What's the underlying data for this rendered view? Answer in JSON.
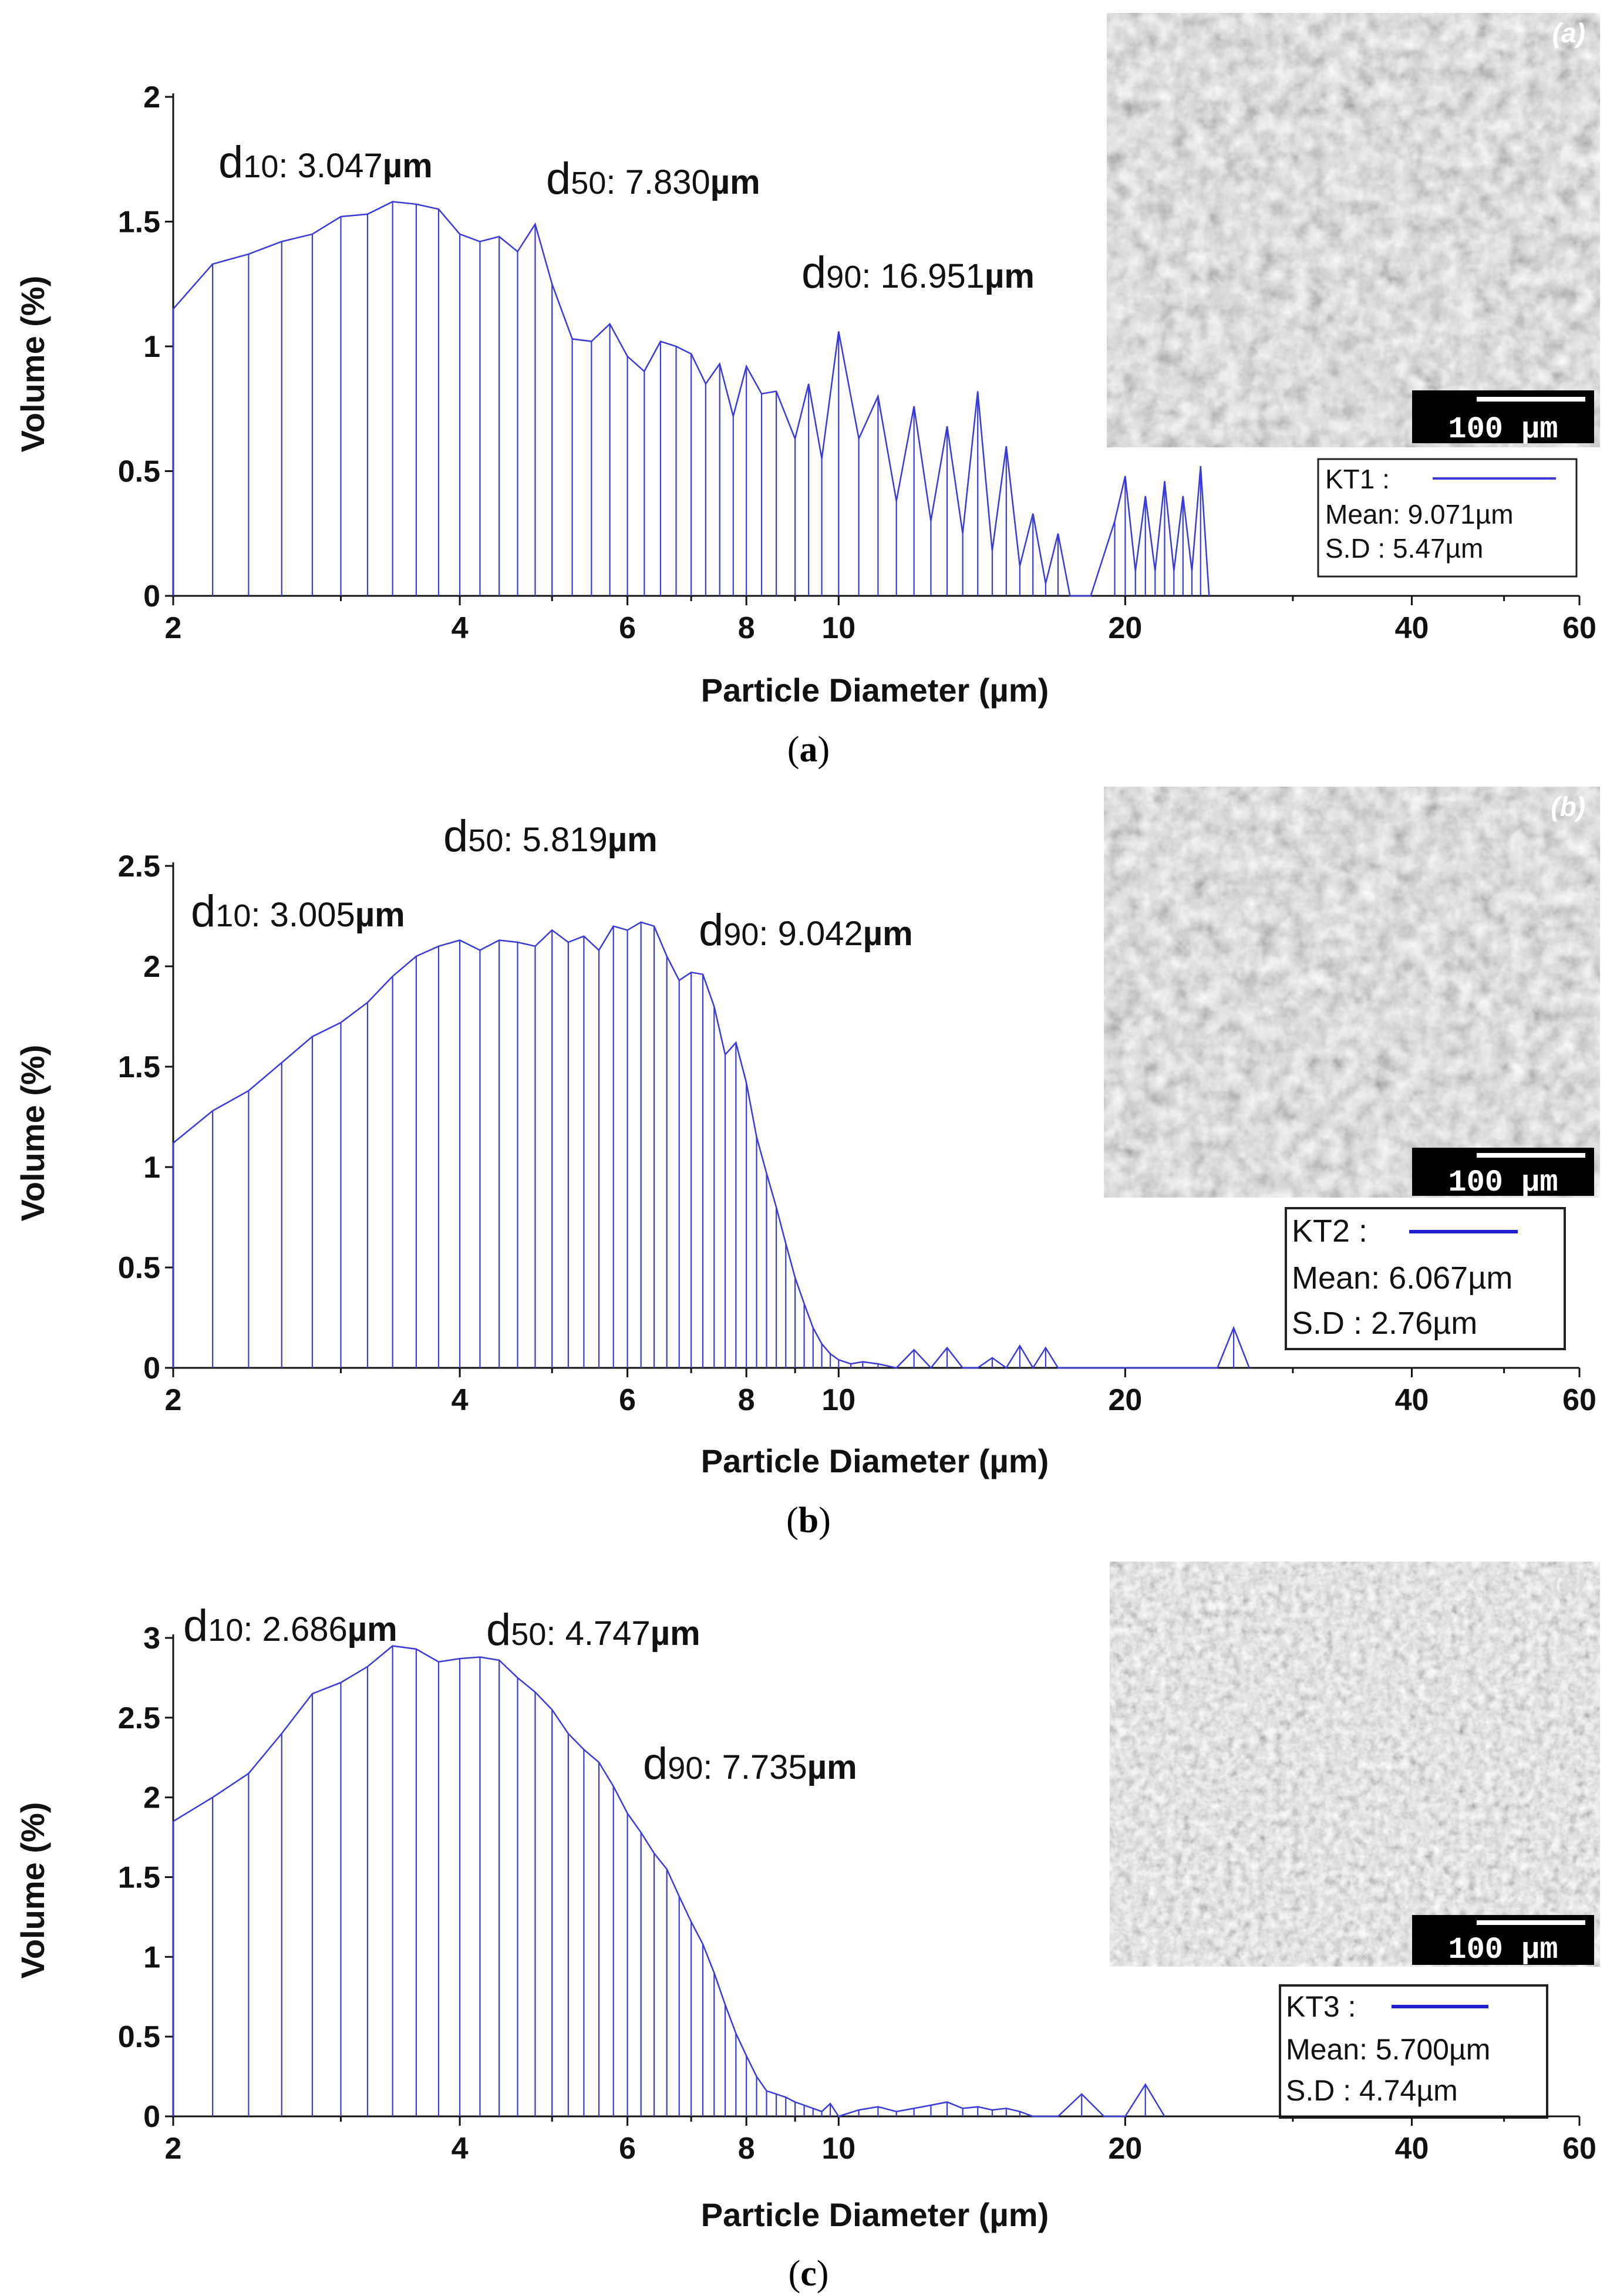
{
  "chart_data": [
    {
      "type": "bar",
      "panel": "a",
      "sem_label": "(a)",
      "scale_bar_label": "100 µm",
      "xlabel": "Particle Diameter (µm)",
      "ylabel": "Volume (%)",
      "xscale": "log",
      "xlim": [
        2,
        60
      ],
      "ylim": [
        0,
        2
      ],
      "xticks": [
        2,
        4,
        6,
        8,
        10,
        20,
        40,
        60
      ],
      "yticks": [
        {
          "v": 0,
          "label": "0"
        },
        {
          "v": 0.5,
          "label": "0.5"
        },
        {
          "v": 1,
          "label": "1"
        },
        {
          "v": 1.5,
          "label": "1.5"
        },
        {
          "v": 2,
          "label": "2"
        }
      ],
      "d10": {
        "name": "d",
        "sub": "10",
        "text": ": 3.047",
        "unit": "µm"
      },
      "d50": {
        "name": "d",
        "sub": "50",
        "text": ": 7.830",
        "unit": "µm"
      },
      "d90": {
        "name": "d",
        "sub": "90",
        "text": ": 16.951",
        "unit": "µm"
      },
      "legend": {
        "name": "KT1",
        "mean": "Mean: 9.071µm",
        "sd": "S.D   : 5.47µm"
      },
      "series": [
        {
          "name": "KT1",
          "color": "#3a3adc",
          "x": [
            2.0,
            2.2,
            2.4,
            2.6,
            2.8,
            3.0,
            3.2,
            3.4,
            3.6,
            3.8,
            4.0,
            4.2,
            4.4,
            4.6,
            4.8,
            5.0,
            5.25,
            5.5,
            5.75,
            6.0,
            6.25,
            6.5,
            6.75,
            7.0,
            7.25,
            7.5,
            7.75,
            8.0,
            8.3,
            8.6,
            9.0,
            9.3,
            9.6,
            10.0,
            10.5,
            11.0,
            11.5,
            12.0,
            12.5,
            13.0,
            13.5,
            14.0,
            14.5,
            15.0,
            15.5,
            16.0,
            16.5,
            17.0,
            17.5,
            18.0,
            18.4,
            19.5,
            20.0,
            20.5,
            21.0,
            21.5,
            22.0,
            22.5,
            23.0,
            23.5,
            24.0,
            24.5
          ],
          "y": [
            1.15,
            1.33,
            1.37,
            1.42,
            1.45,
            1.52,
            1.53,
            1.58,
            1.57,
            1.55,
            1.45,
            1.42,
            1.44,
            1.38,
            1.49,
            1.25,
            1.03,
            1.02,
            1.09,
            0.96,
            0.9,
            1.02,
            1.0,
            0.97,
            0.85,
            0.93,
            0.72,
            0.92,
            0.81,
            0.82,
            0.63,
            0.85,
            0.55,
            1.06,
            0.63,
            0.8,
            0.38,
            0.76,
            0.3,
            0.68,
            0.25,
            0.82,
            0.18,
            0.6,
            0.12,
            0.33,
            0.05,
            0.25,
            0.0,
            0.0,
            0.0,
            0.3,
            0.48,
            0.1,
            0.4,
            0.1,
            0.46,
            0.1,
            0.4,
            0.1,
            0.52,
            0.0
          ]
        }
      ]
    },
    {
      "type": "bar",
      "panel": "b",
      "sem_label": "(b)",
      "scale_bar_label": "100 µm",
      "xlabel": "Particle Diameter (µm)",
      "ylabel": "Volume (%)",
      "xscale": "log",
      "xlim": [
        2,
        60
      ],
      "ylim": [
        0,
        2.5
      ],
      "xticks": [
        2,
        4,
        6,
        8,
        10,
        20,
        40,
        60
      ],
      "yticks": [
        {
          "v": 0,
          "label": "0"
        },
        {
          "v": 0.5,
          "label": "0.5"
        },
        {
          "v": 1,
          "label": "1"
        },
        {
          "v": 1.5,
          "label": "1.5"
        },
        {
          "v": 2,
          "label": "2"
        },
        {
          "v": 2.5,
          "label": "2.5"
        }
      ],
      "d10": {
        "name": "d",
        "sub": "10",
        "text": ": 3.005",
        "unit": "µm"
      },
      "d50": {
        "name": "d",
        "sub": "50",
        "text": ": 5.819",
        "unit": "µm"
      },
      "d90": {
        "name": "d",
        "sub": "90",
        "text": ": 9.042",
        "unit": "µm"
      },
      "legend": {
        "name": "KT2",
        "mean": "Mean: 6.067µm",
        "sd": "S.D   : 2.76µm"
      },
      "series": [
        {
          "name": "KT2",
          "color": "#3a3adc",
          "x": [
            2.0,
            2.2,
            2.4,
            2.6,
            2.8,
            3.0,
            3.2,
            3.4,
            3.6,
            3.8,
            4.0,
            4.2,
            4.4,
            4.6,
            4.8,
            5.0,
            5.2,
            5.4,
            5.6,
            5.8,
            6.0,
            6.2,
            6.4,
            6.6,
            6.8,
            7.0,
            7.2,
            7.4,
            7.6,
            7.8,
            8.0,
            8.2,
            8.4,
            8.6,
            8.8,
            9.0,
            9.2,
            9.4,
            9.6,
            9.8,
            10.0,
            10.3,
            10.6,
            11.0,
            11.5,
            12.0,
            12.5,
            13.0,
            13.5,
            14.0,
            14.5,
            15.0,
            15.5,
            16.0,
            16.5,
            17.0,
            17.5,
            18.0,
            18.5,
            19.0,
            19.5,
            20.0,
            22.0,
            25.0,
            26.0,
            27.0
          ],
          "y": [
            1.12,
            1.28,
            1.38,
            1.52,
            1.65,
            1.72,
            1.82,
            1.95,
            2.05,
            2.1,
            2.13,
            2.08,
            2.13,
            2.12,
            2.1,
            2.18,
            2.12,
            2.15,
            2.08,
            2.2,
            2.18,
            2.22,
            2.2,
            2.05,
            1.93,
            1.97,
            1.96,
            1.8,
            1.56,
            1.62,
            1.42,
            1.15,
            0.97,
            0.8,
            0.62,
            0.45,
            0.32,
            0.2,
            0.12,
            0.07,
            0.04,
            0.02,
            0.03,
            0.02,
            0.0,
            0.09,
            0.0,
            0.1,
            0.0,
            0.0,
            0.05,
            0.0,
            0.11,
            0.0,
            0.1,
            0.0,
            0.0,
            0.0,
            0.0,
            0.0,
            0.0,
            0.0,
            0.0,
            0.0,
            0.2,
            0.0
          ]
        }
      ]
    },
    {
      "type": "bar",
      "panel": "c",
      "sem_label": "(c)",
      "scale_bar_label": "100 µm",
      "xlabel": "Particle Diameter (µm)",
      "ylabel": "Volume (%)",
      "xscale": "log",
      "xlim": [
        2,
        60
      ],
      "ylim": [
        0,
        3
      ],
      "xticks": [
        2,
        4,
        6,
        8,
        10,
        20,
        40,
        60
      ],
      "yticks": [
        {
          "v": 0,
          "label": "0"
        },
        {
          "v": 0.5,
          "label": "0.5"
        },
        {
          "v": 1,
          "label": "1"
        },
        {
          "v": 1.5,
          "label": "1.5"
        },
        {
          "v": 2,
          "label": "2"
        },
        {
          "v": 2.5,
          "label": "2.5"
        },
        {
          "v": 3,
          "label": "3"
        }
      ],
      "d10": {
        "name": "d",
        "sub": "10",
        "text": ": 2.686",
        "unit": "µm"
      },
      "d50": {
        "name": "d",
        "sub": "50",
        "text": ": 4.747",
        "unit": "µm"
      },
      "d90": {
        "name": "d",
        "sub": "90",
        "text": ": 7.735",
        "unit": "µm"
      },
      "legend": {
        "name": "KT3",
        "mean": "Mean: 5.700µm",
        "sd": "S.D   : 4.74µm"
      },
      "series": [
        {
          "name": "KT3",
          "color": "#3a3adc",
          "x": [
            2.0,
            2.2,
            2.4,
            2.6,
            2.8,
            3.0,
            3.2,
            3.4,
            3.6,
            3.8,
            4.0,
            4.2,
            4.4,
            4.6,
            4.8,
            5.0,
            5.2,
            5.4,
            5.6,
            5.8,
            6.0,
            6.2,
            6.4,
            6.6,
            6.8,
            7.0,
            7.2,
            7.4,
            7.6,
            7.8,
            8.0,
            8.2,
            8.4,
            8.6,
            8.8,
            9.0,
            9.2,
            9.4,
            9.6,
            9.8,
            10.0,
            10.5,
            11.0,
            11.5,
            12.0,
            12.5,
            13.0,
            13.5,
            14.0,
            14.5,
            15.0,
            15.5,
            16.0,
            17.0,
            18.0,
            19.0,
            20.0,
            21.0,
            22.0
          ],
          "y": [
            1.85,
            2.0,
            2.15,
            2.4,
            2.65,
            2.72,
            2.82,
            2.95,
            2.93,
            2.85,
            2.87,
            2.88,
            2.86,
            2.75,
            2.66,
            2.55,
            2.4,
            2.3,
            2.22,
            2.07,
            1.9,
            1.78,
            1.65,
            1.55,
            1.38,
            1.22,
            1.08,
            0.9,
            0.7,
            0.52,
            0.38,
            0.25,
            0.16,
            0.14,
            0.12,
            0.09,
            0.07,
            0.05,
            0.03,
            0.08,
            0.0,
            0.04,
            0.06,
            0.03,
            0.05,
            0.07,
            0.09,
            0.05,
            0.06,
            0.04,
            0.05,
            0.03,
            0.0,
            0.0,
            0.14,
            0.0,
            0.0,
            0.2,
            0.0
          ]
        }
      ]
    }
  ],
  "captions": [
    {
      "open": "(",
      "letter": "a",
      "close": ")"
    },
    {
      "open": "(",
      "letter": "b",
      "close": ")"
    },
    {
      "open": "(",
      "letter": "c",
      "close": ")"
    }
  ],
  "colors": {
    "series": "#3a3adc",
    "axis": "#111111",
    "text": "#111111"
  }
}
